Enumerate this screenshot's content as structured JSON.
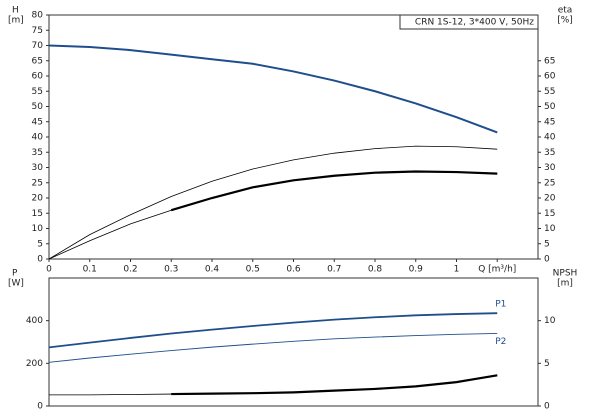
{
  "chart_data": [
    {
      "type": "line",
      "title": "CRN 1S-12, 3*400 V, 50Hz",
      "y_label": "H",
      "y_unit": "[m]",
      "y2_label": "eta",
      "y2_unit": "[%]",
      "x": [
        0,
        0.1,
        0.2,
        0.3,
        0.4,
        0.5,
        0.6,
        0.7,
        0.8,
        0.9,
        1.0,
        1.1
      ],
      "xlim": [
        0,
        1.2
      ],
      "xticks": [
        0,
        0.1,
        0.2,
        0.3,
        0.4,
        0.5,
        0.6,
        0.7,
        0.8,
        0.9,
        1.0,
        {
          "value": 1.1,
          "label": "Q [m³/h]"
        }
      ],
      "ylim": [
        0,
        80
      ],
      "yticks": [
        0,
        5,
        10,
        15,
        20,
        25,
        30,
        35,
        40,
        45,
        50,
        55,
        60,
        65,
        70,
        75,
        80
      ],
      "y2lim": [
        0,
        80
      ],
      "y2ticks": [
        0,
        5,
        10,
        15,
        20,
        25,
        30,
        35,
        40,
        45,
        50,
        55,
        60,
        65
      ],
      "series": [
        {
          "color": "#1f4e8c",
          "width": 2,
          "values": [
            70,
            69.5,
            68.5,
            67,
            65.5,
            64,
            61.5,
            58.5,
            55,
            51,
            46.5,
            41.5
          ]
        },
        {
          "color": "#000000",
          "width": 0.8,
          "axis": "y2",
          "values": [
            0,
            8,
            14.5,
            20.5,
            25.5,
            29.5,
            32.5,
            34.7,
            36.2,
            37,
            36.8,
            36
          ]
        },
        {
          "color": "#000000",
          "width": 0.8,
          "axis": "y2",
          "values": [
            0,
            6,
            11.5,
            16,
            20,
            23.5,
            25.8,
            27.3,
            28.3,
            28.7,
            28.5,
            28
          ]
        },
        {
          "color": "#000000",
          "width": 2.2,
          "axis": "y2",
          "values": [
            null,
            null,
            null,
            16,
            20,
            23.5,
            25.8,
            27.3,
            28.3,
            28.7,
            28.5,
            28
          ]
        }
      ]
    },
    {
      "type": "line",
      "y_label": "P",
      "y_unit": "[W]",
      "y2_label": "NPSH",
      "y2_unit": "[m]",
      "x": [
        0,
        0.1,
        0.2,
        0.3,
        0.4,
        0.5,
        0.6,
        0.7,
        0.8,
        0.9,
        1.0,
        1.1
      ],
      "xlim": [
        0,
        1.2
      ],
      "ylim": [
        0,
        600
      ],
      "yticks": [
        0,
        200,
        400
      ],
      "y2lim": [
        0,
        15
      ],
      "y2ticks": [
        0,
        5,
        10
      ],
      "legend": "line-end",
      "series": [
        {
          "name": "P1",
          "color": "#1f4e8c",
          "width": 1.8,
          "values": [
            275,
            297,
            319,
            340,
            358,
            375,
            391,
            405,
            416,
            425,
            431,
            435
          ]
        },
        {
          "name": "P2",
          "color": "#1f4e8c",
          "width": 0.9,
          "values": [
            205,
            225,
            243,
            260,
            276,
            290,
            303,
            315,
            323,
            330,
            336,
            340
          ]
        },
        {
          "color": "#000000",
          "width": 0.8,
          "axis": "y2",
          "values": [
            1.3,
            1.3,
            1.35,
            1.4,
            1.45,
            1.5,
            1.6,
            1.8,
            2.0,
            2.3,
            2.8,
            3.6
          ]
        },
        {
          "color": "#000000",
          "width": 2.2,
          "axis": "y2",
          "values": [
            null,
            null,
            null,
            1.4,
            1.45,
            1.5,
            1.6,
            1.8,
            2.0,
            2.3,
            2.8,
            3.6
          ]
        }
      ]
    }
  ]
}
